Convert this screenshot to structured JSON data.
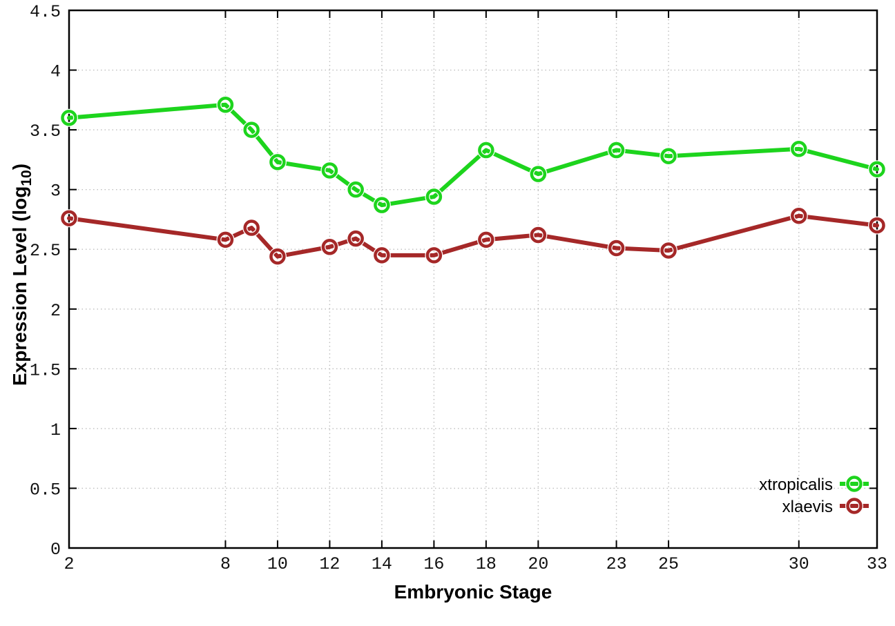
{
  "style": {
    "background": "#ffffff",
    "plot_border_color": "#000000",
    "grid_color": "#bdbdbd",
    "tick_label_color": "#111111",
    "series_green": "#1dd41d",
    "series_red": "#a52828"
  },
  "chart_data": {
    "type": "line",
    "title": "",
    "xlabel": "Embryonic Stage",
    "ylabel": "Expression Level (log10)",
    "ylabel_parts": {
      "prefix": "Expression Level (log",
      "sub": "10",
      "suffix": ")"
    },
    "x": [
      2,
      8,
      9,
      10,
      12,
      13,
      14,
      16,
      18,
      20,
      23,
      25,
      30,
      33
    ],
    "x_tick_labels": [
      2,
      8,
      10,
      12,
      14,
      16,
      18,
      20,
      23,
      25,
      30,
      33
    ],
    "xlim": [
      2,
      33
    ],
    "y_ticks": [
      0,
      0.5,
      1,
      1.5,
      2,
      2.5,
      3,
      3.5,
      4,
      4.5
    ],
    "ylim": [
      0,
      4.5
    ],
    "grid": "dotted-at-ticks",
    "legend_position": "bottom-right-inside",
    "marker_style": "open-circle-with-dash",
    "series": [
      {
        "name": "xtropicalis",
        "color": "#1dd41d",
        "values": [
          3.6,
          3.71,
          3.5,
          3.23,
          3.16,
          3.0,
          2.87,
          2.94,
          3.33,
          3.13,
          3.33,
          3.28,
          3.34,
          3.17
        ]
      },
      {
        "name": "xlaevis",
        "color": "#a52828",
        "values": [
          2.76,
          2.58,
          2.68,
          2.44,
          2.52,
          2.59,
          2.45,
          2.45,
          2.58,
          2.62,
          2.51,
          2.49,
          2.78,
          2.7
        ]
      }
    ]
  }
}
